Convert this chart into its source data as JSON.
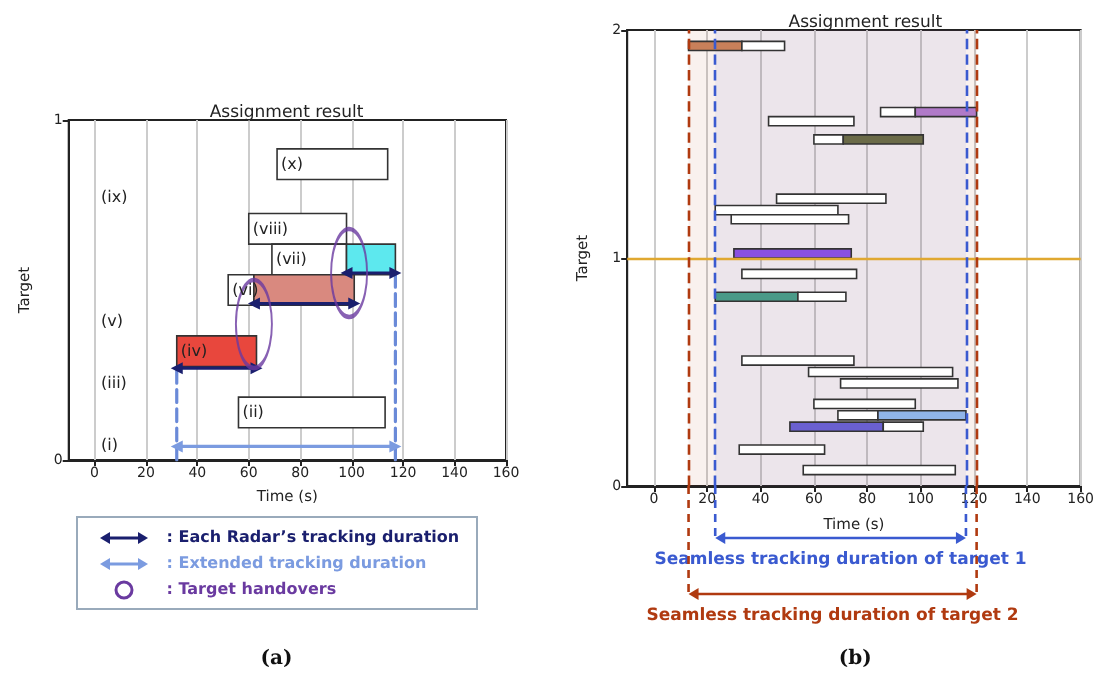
{
  "chart_data": [
    {
      "type": "bar",
      "orientation": "horizontal",
      "title": "Assignment result",
      "xlabel": "Time (s)",
      "ylabel": "Target",
      "xlim": [
        -10,
        160
      ],
      "xticks": [
        0,
        20,
        40,
        60,
        80,
        100,
        120,
        140,
        160
      ],
      "ylim": [
        0,
        1
      ],
      "yticks": [
        0,
        1
      ],
      "grid": "x",
      "legend": "bottom",
      "series": [
        {
          "x": [
            0.87,
            0.68,
            0.59,
            0.5,
            0.32,
            0.14
          ],
          "base": [
            71,
            60,
            69,
            52,
            32,
            56
          ],
          "values": [
            43,
            38,
            29,
            10,
            31,
            57
          ],
          "colors": [
            "#ffffff",
            "#ffffff",
            "#ffffff",
            "#ffffff",
            "#e8473d",
            "#ffffff"
          ]
        },
        {
          "x": [
            0.59,
            0.5
          ],
          "base": [
            98,
            62
          ],
          "values": [
            19,
            39
          ],
          "colors": [
            "#5de8ee",
            "#d9897f"
          ]
        },
        {
          "type": "line",
          "color": "#6a8ad8",
          "line_style": "dashed",
          "marker": "none",
          "x": [
            0,
            0.27
          ],
          "values": [
            32,
            32
          ]
        },
        {
          "type": "line",
          "color": "#6a8ad8",
          "line_style": "dashed",
          "marker": "none",
          "x": [
            0,
            0.55
          ],
          "values": [
            117,
            117
          ]
        },
        {
          "type": "line",
          "name": ": Each Radar’s tracking duration",
          "color": "#1a1f6e",
          "line_style": "solid",
          "marker": "triangle",
          "x": [
            0.27,
            0.27,
            null,
            0.46,
            0.46,
            null,
            0.55,
            0.55
          ],
          "values": [
            32,
            63,
            null,
            62,
            101,
            null,
            98,
            117
          ]
        },
        {
          "type": "line",
          "name": ": Extended tracking duration",
          "color": "#7b9be0",
          "line_style": "solid",
          "marker": "triangle",
          "x": [
            0.04,
            0.04
          ],
          "values": [
            32,
            117
          ]
        },
        {
          "type": "scatter",
          "name": ": Target handovers",
          "color": "#6a3aa0",
          "marker": "circle",
          "x": [
            0.4,
            0.55
          ],
          "values": [
            62,
            99
          ]
        }
      ],
      "annotations": [
        "(i)",
        "(iii)",
        "(v)",
        "(ix)",
        {
          "text": "(ii)",
          "x": 56,
          "y": 0.14
        },
        {
          "text": "(iv)",
          "x": 32,
          "y": 0.32
        },
        {
          "text": "(vi)",
          "x": 52,
          "y": 0.5
        },
        {
          "text": "(vii)",
          "x": 69,
          "y": 0.59
        },
        {
          "text": "(viii)",
          "x": 60,
          "y": 0.68
        },
        {
          "text": "(x)",
          "x": 71,
          "y": 0.87
        },
        "(a)"
      ]
    },
    {
      "type": "bar",
      "orientation": "horizontal",
      "title": "Assignment result",
      "xlabel": "Time (s)",
      "ylabel": "Target",
      "xlim": [
        -10,
        160
      ],
      "xticks": [
        0,
        20,
        40,
        60,
        80,
        100,
        120,
        140,
        160
      ],
      "ylim": [
        0,
        2
      ],
      "yticks": [
        0,
        1,
        2
      ],
      "grid": "x",
      "legend": "bottom",
      "series": [
        {
          "x": [
            1.93,
            1.64,
            1.6,
            1.52,
            1.26,
            1.21,
            1.17,
            1.02,
            0.93,
            0.83,
            0.55,
            0.5,
            0.45,
            0.36,
            0.31,
            0.26,
            0.16,
            0.07
          ],
          "base": [
            13,
            85,
            43,
            60,
            46,
            23,
            29,
            30,
            33,
            23,
            33,
            58,
            70,
            60,
            69,
            51,
            32,
            56
          ],
          "values": [
            20,
            13,
            32,
            11,
            41,
            46,
            44,
            44,
            43,
            31,
            42,
            54,
            44,
            38,
            15,
            35,
            32,
            57
          ],
          "colors": [
            "#c8805a",
            "#ffffff",
            "#ffffff",
            "#ffffff",
            "#ffffff",
            "#ffffff",
            "#ffffff",
            "#8a50e0",
            "#ffffff",
            "#4a9a88",
            "#ffffff",
            "#ffffff",
            "#ffffff",
            "#ffffff",
            "#ffffff",
            "#6a60d0",
            "#ffffff",
            "#ffffff"
          ]
        },
        {
          "x": [
            1.93,
            1.64,
            1.52,
            0.83,
            0.31,
            0.26
          ],
          "base": [
            33,
            98,
            71,
            54,
            84,
            86
          ],
          "values": [
            16,
            23,
            30,
            18,
            33,
            15
          ],
          "colors": [
            "#ffffff",
            "#b07ac8",
            "#6b6b48",
            "#ffffff",
            "#90b4e8",
            "#ffffff"
          ]
        }
      ],
      "ref_lines": [
        {
          "axis": "y",
          "value": 1,
          "color": "#e0a830",
          "line_style": "solid"
        },
        {
          "axis": "x",
          "value": 23,
          "color": "#3a5ad0",
          "line_style": "dashed"
        },
        {
          "axis": "x",
          "value": 117,
          "color": "#3a5ad0",
          "line_style": "dashed"
        },
        {
          "axis": "x",
          "value": 13,
          "color": "#b03a10",
          "line_style": "dashed"
        },
        {
          "axis": "x",
          "value": 121,
          "color": "#b03a10",
          "line_style": "dashed"
        }
      ],
      "bands": [
        {
          "axis": "x",
          "from": 23,
          "to": 117,
          "label": "Seamless tracking duration of target 1",
          "color": "#3a5ad0"
        },
        {
          "axis": "x",
          "from": 13,
          "to": 121,
          "label": "Seamless tracking duration of target 2",
          "color": "#b03a10"
        }
      ],
      "annotations": [
        "(b)"
      ]
    }
  ]
}
